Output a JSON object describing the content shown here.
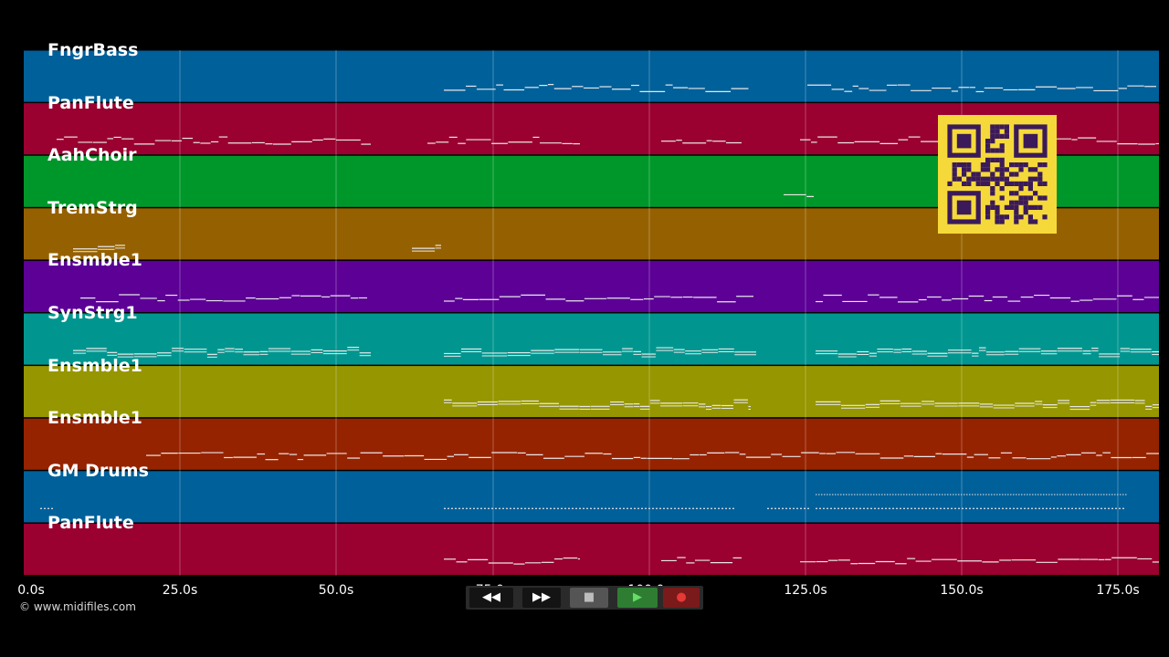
{
  "tracks": [
    {
      "name": "FngrBass",
      "color": "#00609a"
    },
    {
      "name": "PanFlute",
      "color": "#9a0030"
    },
    {
      "name": "AahChoir",
      "color": "#00972a"
    },
    {
      "name": "TremStrg",
      "color": "#956100"
    },
    {
      "name": "Ensmble1",
      "color": "#5c0096"
    },
    {
      "name": "SynStrg1",
      "color": "#00968f"
    },
    {
      "name": "Ensmble1",
      "color": "#969600"
    },
    {
      "name": "Ensmble1",
      "color": "#962300"
    },
    {
      "name": "GM Drums",
      "color": "#00609a"
    },
    {
      "name": "PanFlute",
      "color": "#9a0030"
    }
  ],
  "timeline": {
    "ticks": [
      "0.0s",
      "25.0s",
      "50.0s",
      "75.0s",
      "100.0s",
      "125.0s",
      "150.0s",
      "175.0s"
    ]
  },
  "transport": {
    "buttons": [
      {
        "name": "rewind-button",
        "icon": "rewind-icon",
        "glyph": "◀◀"
      },
      {
        "name": "fast-forward-button",
        "icon": "fast-forward-icon",
        "glyph": "▶▶"
      },
      {
        "name": "stop-button",
        "icon": "stop-icon",
        "glyph": "■"
      },
      {
        "name": "play-button",
        "icon": "play-icon",
        "glyph": "▶"
      },
      {
        "name": "record-button",
        "icon": "record-icon",
        "glyph": "●"
      }
    ],
    "colors": {
      "bar": "#2a2a2a",
      "play": "#2e7d32",
      "stop": "#555555",
      "record": "#7a1a1a"
    }
  },
  "copyright": "© www.midifiles.com",
  "qr": {
    "icon": "qr-code-icon",
    "color": "#f5d93a",
    "dark": "#3b1a5a"
  }
}
